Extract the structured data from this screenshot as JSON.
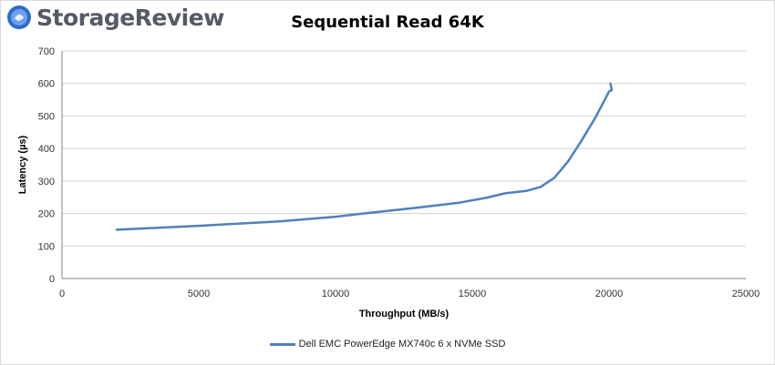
{
  "brand": {
    "name": "StorageReview"
  },
  "chart_data": {
    "type": "line",
    "title": "Sequential Read 64K",
    "xlabel": "Throughput (MB/s)",
    "ylabel": "Latency (µs)",
    "xlim": [
      0,
      25000
    ],
    "ylim": [
      0,
      700
    ],
    "xticks": [
      0,
      5000,
      10000,
      15000,
      20000,
      25000
    ],
    "yticks": [
      0,
      100,
      200,
      300,
      400,
      500,
      600,
      700
    ],
    "grid": "horizontal",
    "legend_position": "bottom",
    "series": [
      {
        "name": "Dell EMC PowerEdge MX740c 6 x NVMe SSD",
        "color": "#4f81bd",
        "x": [
          2000,
          5000,
          8000,
          10000,
          11000,
          13000,
          14500,
          15500,
          16200,
          17000,
          17500,
          18000,
          18500,
          19000,
          19500,
          20000,
          20100,
          20050
        ],
        "y": [
          150,
          162,
          176,
          190,
          200,
          218,
          233,
          248,
          262,
          270,
          282,
          310,
          360,
          425,
          495,
          575,
          580,
          600
        ]
      }
    ]
  }
}
